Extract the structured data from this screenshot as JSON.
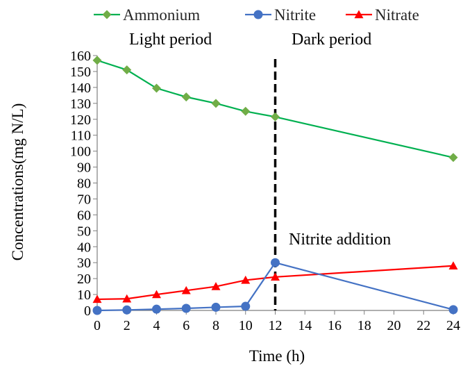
{
  "chart_data": {
    "type": "line",
    "xlabel": "Time (h)",
    "ylabel": "Concentrations(mg N/L)",
    "xlim": [
      0,
      24
    ],
    "ylim": [
      0,
      160
    ],
    "x_ticks": [
      "0",
      "2",
      "4",
      "6",
      "8",
      "10",
      "12",
      "14",
      "16",
      "18",
      "20",
      "22",
      "24"
    ],
    "y_ticks": [
      "0",
      "10",
      "20",
      "30",
      "40",
      "50",
      "60",
      "70",
      "80",
      "90",
      "100",
      "110",
      "120",
      "130",
      "140",
      "150",
      "160"
    ],
    "grid": false,
    "legend_position": "top",
    "series": [
      {
        "name": "Ammonium",
        "color": "#00b050",
        "marker": "diamond",
        "marker_color": "#70ad47",
        "points": [
          [
            0,
            157
          ],
          [
            2,
            151
          ],
          [
            4,
            139.5
          ],
          [
            6,
            134
          ],
          [
            8,
            130
          ],
          [
            10,
            125
          ],
          [
            12,
            121.5
          ],
          [
            24,
            96
          ]
        ]
      },
      {
        "name": "Nitrite",
        "color": "#4472c4",
        "marker": "circle",
        "marker_color": "#4472c4",
        "points": [
          [
            0,
            0
          ],
          [
            2,
            0.3
          ],
          [
            4,
            0.8
          ],
          [
            6,
            1.3
          ],
          [
            8,
            2
          ],
          [
            10,
            2.6
          ],
          [
            12,
            30
          ],
          [
            24,
            0.5
          ]
        ]
      },
      {
        "name": "Nitrate",
        "color": "#ff0000",
        "marker": "triangle",
        "marker_color": "#ff0000",
        "points": [
          [
            0,
            7
          ],
          [
            2,
            7.3
          ],
          [
            4,
            10
          ],
          [
            6,
            12.5
          ],
          [
            8,
            15
          ],
          [
            10,
            19
          ],
          [
            12,
            21
          ],
          [
            24,
            28
          ]
        ]
      }
    ],
    "vline": {
      "x": 12,
      "style": "dashed",
      "color": "#000000"
    },
    "annotations": {
      "light_period": "Light period",
      "dark_period": "Dark period",
      "nitrite_addition": "Nitrite addition"
    }
  }
}
